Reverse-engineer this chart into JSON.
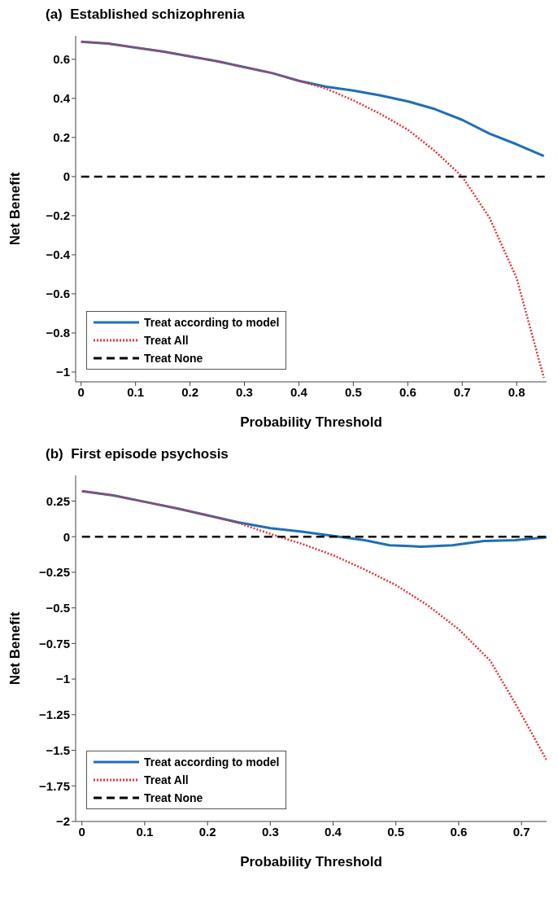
{
  "chart_data": [
    {
      "type": "line",
      "title": "(a)  Established schizophrenia",
      "xlabel": "Probability Threshold",
      "ylabel": "Net Benefit",
      "xlim": [
        -0.01,
        0.855
      ],
      "ylim": [
        -1.05,
        0.72
      ],
      "xticks": [
        0,
        0.1,
        0.2,
        0.3,
        0.4,
        0.5,
        0.6,
        0.7,
        0.8
      ],
      "yticks": [
        {
          "value": -1,
          "label": "−1"
        },
        {
          "value": -0.8,
          "label": "−0.8"
        },
        {
          "value": -0.6,
          "label": "−0.6"
        },
        {
          "value": -0.4,
          "label": "−0.4"
        },
        {
          "value": -0.2,
          "label": "−0.2"
        },
        0,
        0.2,
        0.4,
        0.6
      ],
      "legend": "bottom left",
      "marker": "none",
      "series": [
        {
          "name": "Treat according to model",
          "color": "#1f6fb5",
          "line_style": "solid",
          "x": [
            0,
            0.05,
            0.1,
            0.15,
            0.2,
            0.25,
            0.3,
            0.35,
            0.4,
            0.45,
            0.5,
            0.55,
            0.6,
            0.65,
            0.7,
            0.75,
            0.8,
            0.85
          ],
          "values": [
            0.69,
            0.68,
            0.66,
            0.64,
            0.615,
            0.59,
            0.56,
            0.53,
            0.49,
            0.46,
            0.44,
            0.415,
            0.385,
            0.345,
            0.29,
            0.22,
            0.165,
            0.105
          ]
        },
        {
          "name": "Treat All",
          "color": "#e8333a",
          "line_style": "dotted",
          "x": [
            0,
            0.05,
            0.1,
            0.15,
            0.2,
            0.25,
            0.3,
            0.35,
            0.4,
            0.45,
            0.5,
            0.55,
            0.6,
            0.65,
            0.7,
            0.75,
            0.8,
            0.85
          ],
          "values": [
            0.69,
            0.68,
            0.66,
            0.64,
            0.615,
            0.59,
            0.56,
            0.53,
            0.49,
            0.45,
            0.39,
            0.32,
            0.24,
            0.13,
            0.0,
            -0.21,
            -0.52,
            -1.03
          ]
        },
        {
          "name": "Treat None",
          "color": "#000000",
          "line_style": "dashed",
          "x": [
            0,
            0.855
          ],
          "values": [
            0,
            0
          ]
        }
      ]
    },
    {
      "type": "line",
      "title": "(b)  First episode psychosis",
      "xlabel": "Probability Threshold",
      "ylabel": "Net Benefit",
      "xlim": [
        -0.01,
        0.74
      ],
      "ylim": [
        -2,
        0.43
      ],
      "xticks": [
        0,
        0.1,
        0.2,
        0.3,
        0.4,
        0.5,
        0.6,
        0.7
      ],
      "yticks": [
        {
          "value": -2,
          "label": "−2"
        },
        {
          "value": -1.75,
          "label": "−1.75"
        },
        {
          "value": -1.5,
          "label": "−1.5"
        },
        {
          "value": -1.25,
          "label": "−1.25"
        },
        {
          "value": -1,
          "label": "−1"
        },
        {
          "value": -0.75,
          "label": "−0.75"
        },
        {
          "value": -0.5,
          "label": "−0.5"
        },
        {
          "value": -0.25,
          "label": "−0.25"
        },
        0,
        0.25
      ],
      "legend": "bottom left",
      "marker": "none",
      "series": [
        {
          "name": "Treat according to model",
          "color": "#1f6fb5",
          "line_style": "solid",
          "x": [
            0,
            0.05,
            0.1,
            0.15,
            0.2,
            0.25,
            0.3,
            0.35,
            0.4,
            0.45,
            0.49,
            0.54,
            0.59,
            0.64,
            0.69,
            0.74
          ],
          "values": [
            0.32,
            0.29,
            0.245,
            0.2,
            0.15,
            0.1,
            0.06,
            0.035,
            0.005,
            -0.025,
            -0.06,
            -0.07,
            -0.06,
            -0.03,
            -0.025,
            -0.005
          ]
        },
        {
          "name": "Treat All",
          "color": "#e8333a",
          "line_style": "dotted",
          "x": [
            0,
            0.05,
            0.1,
            0.15,
            0.2,
            0.25,
            0.3,
            0.35,
            0.4,
            0.45,
            0.5,
            0.55,
            0.6,
            0.65,
            0.69,
            0.74
          ],
          "values": [
            0.32,
            0.29,
            0.245,
            0.2,
            0.15,
            0.095,
            0.02,
            -0.05,
            -0.13,
            -0.23,
            -0.34,
            -0.48,
            -0.65,
            -0.87,
            -1.17,
            -1.57
          ]
        },
        {
          "name": "Treat None",
          "color": "#000000",
          "line_style": "dashed",
          "x": [
            0,
            0.74
          ],
          "values": [
            0,
            0
          ]
        }
      ]
    }
  ]
}
